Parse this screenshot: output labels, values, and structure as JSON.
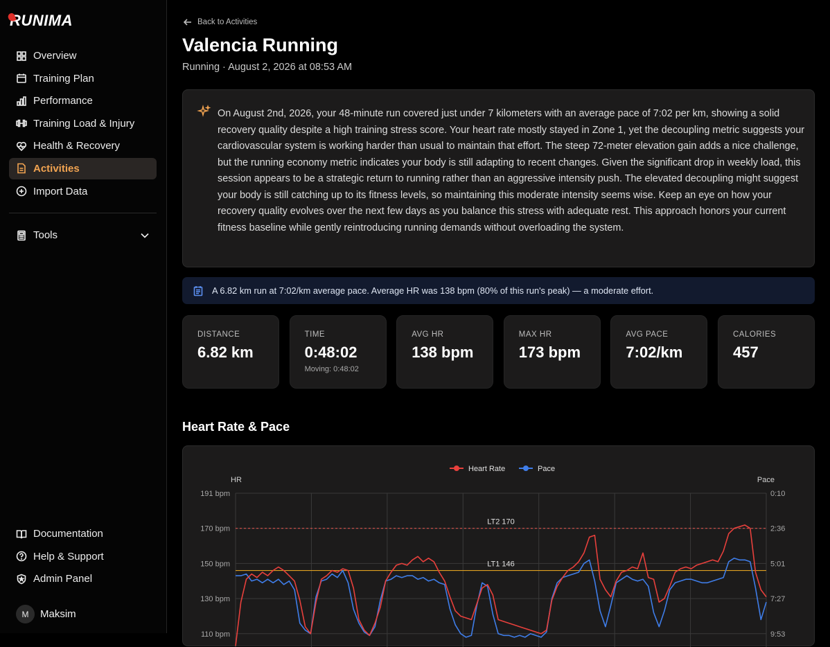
{
  "app": {
    "name": "RUNIMA"
  },
  "sidebar": {
    "items": [
      {
        "label": "Overview",
        "icon": "grid-icon"
      },
      {
        "label": "Training Plan",
        "icon": "calendar-icon"
      },
      {
        "label": "Performance",
        "icon": "bar-chart-icon"
      },
      {
        "label": "Training Load & Injury",
        "icon": "dumbbell-icon"
      },
      {
        "label": "Health & Recovery",
        "icon": "heart-pulse-icon"
      },
      {
        "label": "Activities",
        "icon": "document-icon",
        "active": true
      },
      {
        "label": "Import Data",
        "icon": "plus-circle-icon"
      }
    ],
    "tools_label": "Tools",
    "bottom_items": [
      {
        "label": "Documentation",
        "icon": "book-icon"
      },
      {
        "label": "Help & Support",
        "icon": "help-circle-icon"
      },
      {
        "label": "Admin Panel",
        "icon": "shield-icon"
      }
    ],
    "user": {
      "initial": "M",
      "name": "Maksim"
    }
  },
  "header": {
    "back_label": "Back to Activities",
    "title": "Valencia Running",
    "subtitle": "Running · August 2, 2026 at 08:53 AM"
  },
  "ai_summary": "On August 2nd, 2026, your 48-minute run covered just under 7 kilometers with an average pace of 7:02 per km, showing a solid recovery quality despite a high training stress score. Your heart rate mostly stayed in Zone 1, yet the decoupling metric suggests your cardiovascular system is working harder than usual to maintain that effort. The steep 72-meter elevation gain adds a nice challenge, but the running economy metric indicates your body is still adapting to recent changes. Given the significant drop in weekly load, this session appears to be a strategic return to running rather than an aggressive intensity push. The elevated decoupling might suggest your body is still catching up to its fitness levels, so maintaining this moderate intensity seems wise. Keep an eye on how your recovery quality evolves over the next few days as you balance this stress with adequate rest. This approach honors your current fitness baseline while gently reintroducing running demands without overloading the system.",
  "quick_summary": "A 6.82 km run at 7:02/km average pace. Average HR was 138 bpm (80% of this run's peak) — a moderate effort.",
  "stats": [
    {
      "label": "DISTANCE",
      "value": "6.82 km",
      "sub": ""
    },
    {
      "label": "TIME",
      "value": "0:48:02",
      "sub": "Moving: 0:48:02"
    },
    {
      "label": "AVG HR",
      "value": "138 bpm",
      "sub": ""
    },
    {
      "label": "MAX HR",
      "value": "173 bpm",
      "sub": ""
    },
    {
      "label": "AVG PACE",
      "value": "7:02/km",
      "sub": ""
    },
    {
      "label": "CALORIES",
      "value": "457",
      "sub": ""
    }
  ],
  "chart_section_title": "Heart Rate & Pace",
  "colors": {
    "accent": "#f1a351",
    "heart_rate": "#e8403c",
    "pace": "#3f7de8",
    "threshold": "#e0a020",
    "lt2": "#d8504a"
  },
  "chart_data": {
    "type": "line",
    "legend": [
      "Heart Rate",
      "Pace"
    ],
    "left_axis_label": "HR",
    "right_axis_label": "Pace",
    "left_ticks": [
      "191 bpm",
      "170 bpm",
      "150 bpm",
      "130 bpm",
      "110 bpm"
    ],
    "right_ticks": [
      "0:10",
      "2:36",
      "5:01",
      "7:27",
      "9:53"
    ],
    "ylim_hr": [
      110,
      191
    ],
    "thresholds": [
      {
        "label": "LT2 170",
        "value": 170
      },
      {
        "label": "LT1 146",
        "value": 146
      }
    ],
    "series": [
      {
        "name": "Heart Rate",
        "values": [
          103,
          128,
          141,
          144,
          142,
          145,
          143,
          146,
          148,
          146,
          143,
          140,
          129,
          114,
          110,
          128,
          141,
          143,
          146,
          145,
          147,
          146,
          136,
          118,
          112,
          109,
          116,
          125,
          140,
          145,
          149,
          150,
          149,
          152,
          154,
          151,
          153,
          151,
          145,
          140,
          131,
          123,
          120,
          119,
          118,
          127,
          136,
          138,
          132,
          118,
          117,
          116,
          115,
          114,
          113,
          112,
          111,
          110,
          112,
          129,
          137,
          142,
          146,
          148,
          151,
          156,
          165,
          166,
          141,
          135,
          131,
          140,
          145,
          146,
          148,
          147,
          156,
          142,
          141,
          128,
          130,
          137,
          145,
          147,
          148,
          147,
          149,
          150,
          151,
          152,
          151,
          157,
          167,
          170,
          171,
          172,
          170,
          145,
          135,
          131
        ]
      },
      {
        "name": "Pace",
        "values": [
          143,
          143,
          144,
          140,
          141,
          139,
          141,
          139,
          141,
          138,
          140,
          135,
          116,
          112,
          110,
          131,
          140,
          141,
          144,
          142,
          146,
          139,
          124,
          116,
          111,
          109,
          114,
          129,
          140,
          141,
          143,
          142,
          143,
          143,
          141,
          142,
          140,
          141,
          139,
          138,
          124,
          115,
          110,
          108,
          109,
          126,
          139,
          137,
          121,
          110,
          109,
          109,
          108,
          109,
          108,
          110,
          109,
          108,
          111,
          130,
          139,
          142,
          143,
          144,
          145,
          150,
          152,
          140,
          123,
          114,
          126,
          139,
          141,
          143,
          141,
          140,
          141,
          137,
          122,
          114,
          123,
          135,
          139,
          140,
          141,
          141,
          140,
          139,
          139,
          140,
          141,
          142,
          151,
          153,
          152,
          152,
          151,
          136,
          118,
          128
        ]
      }
    ]
  }
}
